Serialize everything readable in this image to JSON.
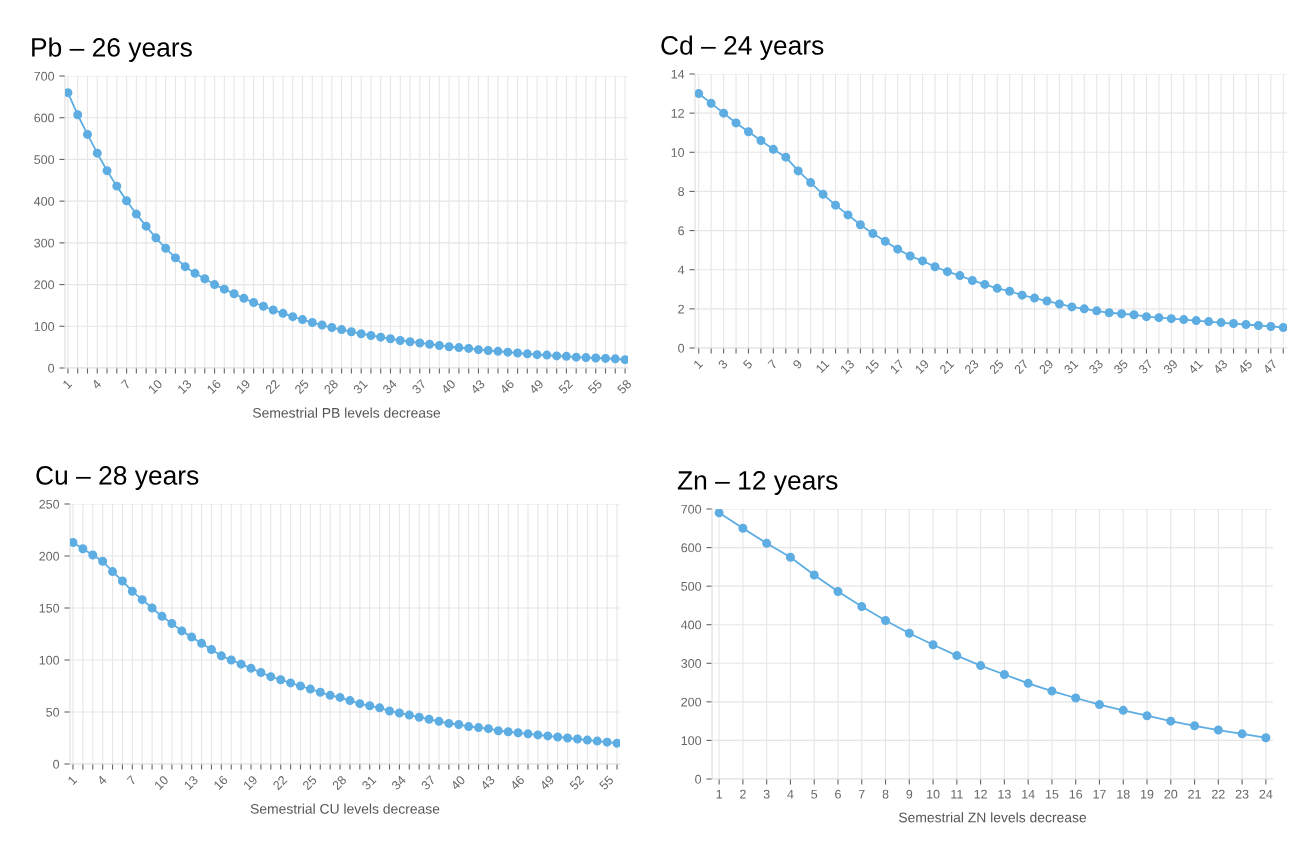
{
  "chart_data": [
    {
      "type": "line",
      "title": "Pb – 26 years",
      "xlabel": "Semestrial PB levels decrease",
      "categories": [
        "1",
        null,
        null,
        "4",
        null,
        null,
        "7",
        null,
        null,
        "10",
        null,
        null,
        "13",
        null,
        null,
        "16",
        null,
        null,
        "19",
        null,
        null,
        "22",
        null,
        null,
        "25",
        null,
        null,
        "28",
        null,
        null,
        "31",
        null,
        null,
        "34",
        null,
        null,
        "37",
        null,
        null,
        "40",
        null,
        null,
        "43",
        null,
        null,
        "46",
        null,
        null,
        "49",
        null,
        null,
        "52",
        null,
        null,
        "55",
        null,
        null,
        "58"
      ],
      "series": [
        {
          "color": "#5dade2",
          "values": [
            660,
            607,
            560,
            515,
            473,
            436,
            401,
            369,
            340,
            312,
            287,
            264,
            243,
            227,
            214,
            200,
            189,
            178,
            167,
            157,
            148,
            139,
            131,
            123,
            116,
            109,
            103,
            97,
            92,
            87,
            82,
            78,
            74,
            70,
            66,
            63,
            60,
            57,
            54,
            51,
            49,
            47,
            44,
            42,
            40,
            38,
            36,
            34,
            32,
            31,
            29,
            28,
            26,
            25,
            24,
            23,
            22,
            20
          ]
        }
      ],
      "ylim": [
        0,
        700
      ],
      "yticks": [
        0,
        100,
        200,
        300,
        400,
        500,
        600,
        700
      ],
      "grid": true,
      "marker": "circle"
    },
    {
      "type": "line",
      "title": "Cd – 24 years",
      "categories": [
        "1",
        null,
        "3",
        null,
        "5",
        null,
        "7",
        null,
        "9",
        null,
        "11",
        null,
        "13",
        null,
        "15",
        null,
        "17",
        null,
        "19",
        null,
        "21",
        null,
        "23",
        null,
        "25",
        null,
        "27",
        null,
        "29",
        null,
        "31",
        null,
        "33",
        null,
        "35",
        null,
        "37",
        null,
        "39",
        null,
        "41",
        null,
        "43",
        null,
        "45",
        null,
        "47",
        null
      ],
      "series": [
        {
          "color": "#5dade2",
          "values": [
            13,
            12.5,
            12,
            11.5,
            11.05,
            10.6,
            10.15,
            9.75,
            9.05,
            8.45,
            7.85,
            7.3,
            6.8,
            6.3,
            5.85,
            5.45,
            5.05,
            4.7,
            4.45,
            4.15,
            3.9,
            3.7,
            3.45,
            3.25,
            3.05,
            2.9,
            2.7,
            2.55,
            2.4,
            2.25,
            2.1,
            2,
            1.9,
            1.8,
            1.75,
            1.7,
            1.6,
            1.55,
            1.5,
            1.45,
            1.4,
            1.35,
            1.3,
            1.25,
            1.2,
            1.15,
            1.1,
            1.05
          ]
        }
      ],
      "ylim": [
        0,
        14
      ],
      "yticks": [
        0,
        2,
        4,
        6,
        8,
        10,
        12,
        14
      ],
      "grid": true,
      "marker": "circle"
    },
    {
      "type": "line",
      "title": "Cu – 28 years",
      "xlabel": "Semestrial CU levels decrease",
      "categories": [
        "1",
        null,
        null,
        "4",
        null,
        null,
        "7",
        null,
        null,
        "10",
        null,
        null,
        "13",
        null,
        null,
        "16",
        null,
        null,
        "19",
        null,
        null,
        "22",
        null,
        null,
        "25",
        null,
        null,
        "28",
        null,
        null,
        "31",
        null,
        null,
        "34",
        null,
        null,
        "37",
        null,
        null,
        "40",
        null,
        null,
        "43",
        null,
        null,
        "46",
        null,
        null,
        "49",
        null,
        null,
        "52",
        null,
        null,
        "55",
        null
      ],
      "series": [
        {
          "color": "#5dade2",
          "values": [
            213,
            207,
            201,
            195,
            185,
            176,
            166,
            158,
            150,
            142,
            135,
            128,
            122,
            116,
            110,
            104,
            100,
            96,
            92,
            88,
            84,
            81,
            78,
            75,
            72,
            69,
            66,
            64,
            61,
            58,
            56,
            54,
            51,
            49,
            47,
            45,
            43,
            41,
            39,
            38,
            36,
            35,
            34,
            32,
            31,
            30,
            29,
            28,
            27,
            26,
            25,
            24,
            23,
            22,
            21,
            20
          ]
        }
      ],
      "ylim": [
        0,
        250
      ],
      "yticks": [
        0,
        50,
        100,
        150,
        200,
        250
      ],
      "grid": true,
      "marker": "circle"
    },
    {
      "type": "line",
      "title": "Zn – 12 years",
      "xlabel": "Semestrial ZN levels decrease",
      "categories": [
        "1",
        "2",
        "3",
        "4",
        "5",
        "6",
        "7",
        "8",
        "9",
        "10",
        "11",
        "12",
        "13",
        "14",
        "15",
        "16",
        "17",
        "18",
        "19",
        "20",
        "21",
        "22",
        "23",
        "24"
      ],
      "series": [
        {
          "color": "#5dade2",
          "values": [
            690,
            650,
            611,
            575,
            529,
            486,
            447,
            411,
            378,
            348,
            320,
            294,
            271,
            248,
            228,
            210,
            193,
            178,
            164,
            150,
            138,
            127,
            117,
            107
          ]
        }
      ],
      "ylim": [
        0,
        700
      ],
      "yticks": [
        0,
        100,
        200,
        300,
        400,
        500,
        600,
        700
      ],
      "grid": true,
      "marker": "circle"
    }
  ]
}
